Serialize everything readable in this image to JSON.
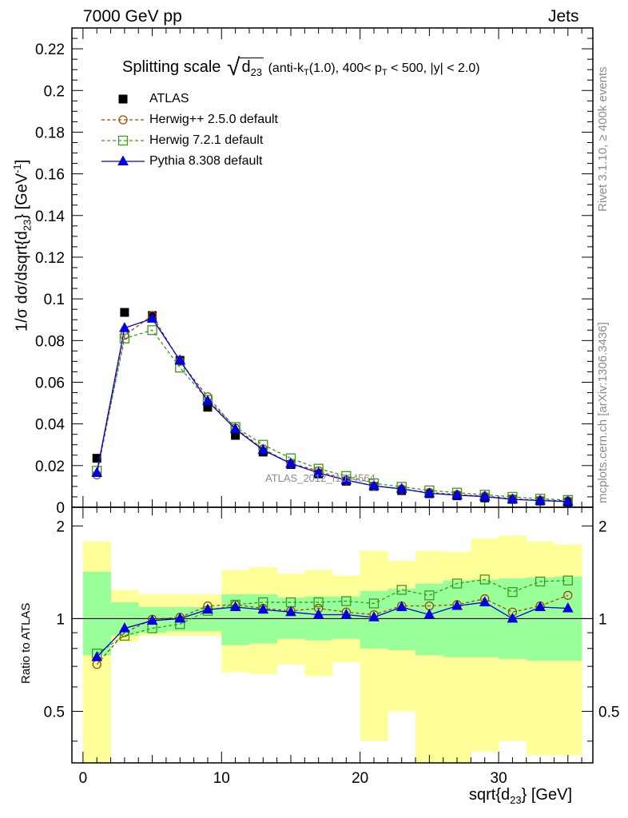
{
  "header": {
    "left": "7000 GeV pp",
    "right": "Jets"
  },
  "side_labels": {
    "rivet": "Rivet 3.1.10, ≥ 400k events",
    "mcplots": "mcplots.cern.ch [arXiv:1306.3436]"
  },
  "chart_data": {
    "type": "scatter",
    "title": "Splitting scale √d23 (anti-kT(1.0), 400< pT < 500, |y| < 2.0)",
    "title_parts": {
      "prefix": "Splitting scale",
      "var": "d",
      "var_sub": "23",
      "tail1": "(anti-k",
      "tail1_sub": "T",
      "tail2": "(1.0), 400< p",
      "tail2_sub": "T",
      "tail3": " < 500, |y| < 2.0)"
    },
    "ylabel_parts": {
      "a": "1/σ dσ/dsqrt{d",
      "sub": "23",
      "b": "} [GeV",
      "sup": "-1",
      "c": "]"
    },
    "xlabel_parts": {
      "a": "sqrt{d",
      "sub": "23",
      "b": "} [GeV]"
    },
    "ratio_ylabel": "Ratio to ATLAS",
    "watermark": "ATLAS_2012_I1094564",
    "x": [
      1,
      3,
      5,
      7,
      9,
      11,
      13,
      15,
      17,
      19,
      21,
      23,
      25,
      27,
      29,
      31,
      33,
      35
    ],
    "bin_edges": [
      0,
      2,
      4,
      6,
      8,
      10,
      12,
      14,
      16,
      18,
      20,
      22,
      24,
      26,
      28,
      30,
      32,
      34,
      36
    ],
    "xlim": [
      -0.8,
      36.8
    ],
    "ylim": [
      0,
      0.23
    ],
    "ratio_ylim": [
      0.34,
      2.3
    ],
    "x_ticks": [
      0,
      10,
      20,
      30
    ],
    "y_ticks": [
      "0",
      "0.02",
      "0.04",
      "0.06",
      "0.08",
      "0.1",
      "0.12",
      "0.14",
      "0.16",
      "0.18",
      "0.2",
      "0.22"
    ],
    "ratio_ticks": [
      "0.5",
      "1",
      "2"
    ],
    "data": {
      "name": "ATLAS",
      "values": [
        0.0235,
        0.0935,
        0.092,
        0.0705,
        0.048,
        0.0345,
        0.0265,
        0.0205,
        0.016,
        0.0125,
        0.01,
        0.008,
        0.0065,
        0.0055,
        0.0045,
        0.0038,
        0.003,
        0.0025
      ],
      "band_inner": [
        [
          0.76,
          1.42
        ],
        [
          0.88,
          1.13
        ],
        [
          0.9,
          1.09
        ],
        [
          0.91,
          1.09
        ],
        [
          0.91,
          1.09
        ],
        [
          0.82,
          1.2
        ],
        [
          0.83,
          1.2
        ],
        [
          0.86,
          1.17
        ],
        [
          0.85,
          1.18
        ],
        [
          0.86,
          1.18
        ],
        [
          0.8,
          1.23
        ],
        [
          0.79,
          1.25
        ],
        [
          0.76,
          1.3
        ],
        [
          0.75,
          1.33
        ],
        [
          0.75,
          1.34
        ],
        [
          0.74,
          1.35
        ],
        [
          0.73,
          1.36
        ],
        [
          0.73,
          1.37
        ]
      ],
      "band_outer": [
        [
          0.34,
          1.78
        ],
        [
          0.84,
          1.24
        ],
        [
          0.88,
          1.2
        ],
        [
          0.88,
          1.2
        ],
        [
          0.88,
          1.2
        ],
        [
          0.67,
          1.44
        ],
        [
          0.66,
          1.47
        ],
        [
          0.71,
          1.4
        ],
        [
          0.65,
          1.44
        ],
        [
          0.72,
          1.38
        ],
        [
          0.4,
          1.66
        ],
        [
          0.5,
          1.54
        ],
        [
          0.34,
          1.66
        ],
        [
          0.34,
          1.65
        ],
        [
          0.37,
          1.82
        ],
        [
          0.4,
          1.86
        ],
        [
          0.36,
          1.78
        ],
        [
          0.36,
          1.74
        ]
      ]
    },
    "series": [
      {
        "name": "Herwig++ 2.5.0 default",
        "color": "#a04a00",
        "marker": "circle-open",
        "values": [
          0.0155,
          0.0825,
          0.092,
          0.07,
          0.053,
          0.038,
          0.028,
          0.021,
          0.0175,
          0.013,
          0.0102,
          0.0088,
          0.0071,
          0.0061,
          0.0053,
          0.0041,
          0.0034,
          0.0031
        ],
        "ratio": [
          0.71,
          0.9,
          0.995,
          1.01,
          1.1,
          1.11,
          1.08,
          1.06,
          1.08,
          1.05,
          1.03,
          1.1,
          1.1,
          1.11,
          1.16,
          1.05,
          1.1,
          1.19
        ]
      },
      {
        "name": "Herwig 7.2.1 default",
        "color": "#3a9a1a",
        "marker": "square-open",
        "values": [
          0.0175,
          0.081,
          0.085,
          0.067,
          0.0515,
          0.0385,
          0.03,
          0.0235,
          0.0185,
          0.015,
          0.0115,
          0.0098,
          0.0081,
          0.007,
          0.006,
          0.005,
          0.0041,
          0.0035
        ],
        "ratio": [
          0.77,
          0.88,
          0.93,
          0.96,
          1.06,
          1.11,
          1.13,
          1.13,
          1.13,
          1.14,
          1.12,
          1.24,
          1.19,
          1.3,
          1.34,
          1.22,
          1.32,
          1.33
        ]
      },
      {
        "name": "Pythia 8.308 default",
        "color": "#0000e0",
        "marker": "triangle-filled",
        "values": [
          0.0165,
          0.086,
          0.0905,
          0.0705,
          0.051,
          0.0375,
          0.0275,
          0.021,
          0.0165,
          0.013,
          0.0103,
          0.0088,
          0.0067,
          0.0058,
          0.0051,
          0.0038,
          0.0032,
          0.0027
        ],
        "ratio": [
          0.75,
          0.93,
          0.985,
          1.0,
          1.07,
          1.09,
          1.07,
          1.05,
          1.03,
          1.03,
          1.01,
          1.09,
          1.03,
          1.1,
          1.13,
          1.0,
          1.09,
          1.08
        ]
      }
    ]
  }
}
